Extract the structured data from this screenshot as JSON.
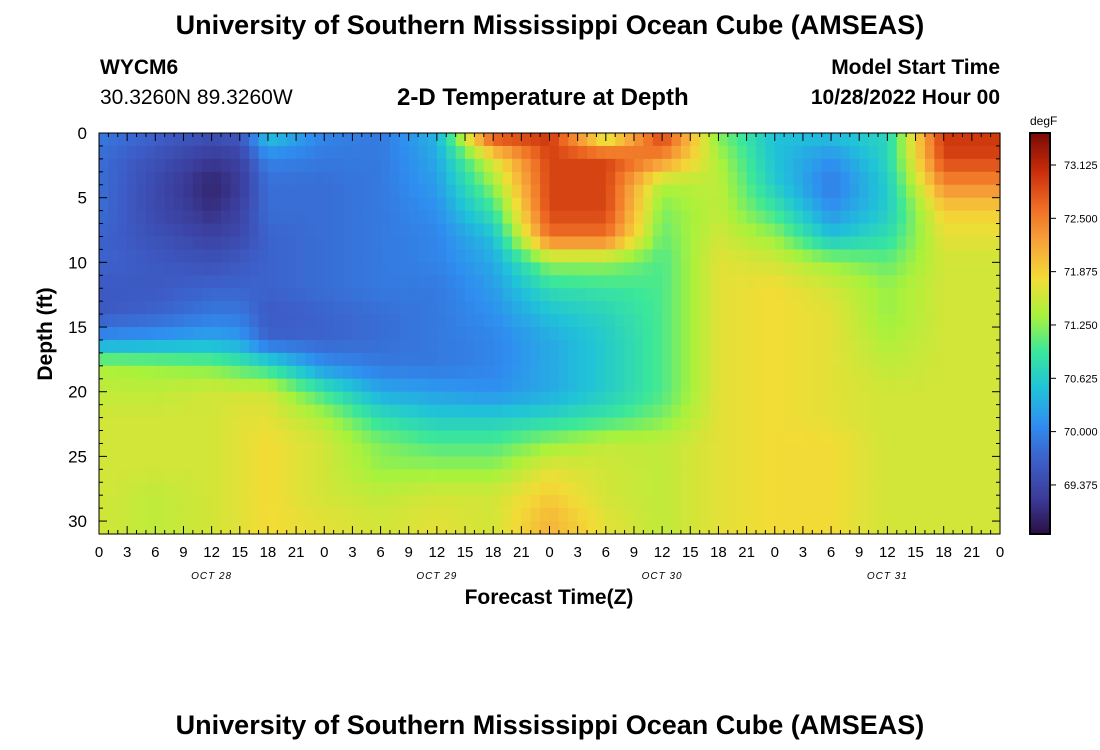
{
  "page": {
    "title": "University of Southern Mississippi Ocean Cube (AMSEAS)",
    "station_id": "WYCM6",
    "station_coords": "30.3260N  89.3260W",
    "chart_title": "2-D Temperature at Depth",
    "model_start_label": "Model Start Time",
    "model_start_value": "10/28/2022 Hour 00",
    "footer_title": "University of Southern Mississippi Ocean Cube (AMSEAS)"
  },
  "chart_data": {
    "type": "heatmap",
    "title": "2-D Temperature at Depth",
    "xlabel": "Forecast Time(Z)",
    "ylabel": "Depth (ft)",
    "x_unit": "hours from model start",
    "x_range": [
      0,
      96
    ],
    "x_tick_labels": [
      "0",
      "3",
      "6",
      "9",
      "12",
      "15",
      "18",
      "21",
      "0",
      "3",
      "6",
      "9",
      "12",
      "15",
      "18",
      "21",
      "0",
      "3",
      "6",
      "9",
      "12",
      "15",
      "18",
      "21",
      "0",
      "3",
      "6",
      "9",
      "12",
      "15",
      "18",
      "21",
      "0"
    ],
    "day_labels": [
      "OCT 28",
      "OCT 29",
      "OCT 30",
      "OCT 31"
    ],
    "y_range": [
      0,
      31
    ],
    "y_inverted": true,
    "y_ticks": [
      0,
      5,
      10,
      15,
      20,
      25,
      30
    ],
    "colorbar": {
      "unit": "degF",
      "range": [
        68.8,
        73.5
      ],
      "ticks": [
        "73.125",
        "72.500",
        "71.875",
        "71.250",
        "70.625",
        "70.000",
        "69.375"
      ],
      "colors": [
        "#2a0f45",
        "#3b3c9a",
        "#3d5ec8",
        "#2f8ef0",
        "#20c3d8",
        "#3be79a",
        "#a8f23c",
        "#f2dc36",
        "#f7a43a",
        "#ee6a23",
        "#c62a08",
        "#7a0b04"
      ]
    },
    "depths": [
      0,
      2,
      4,
      6,
      8,
      10,
      12,
      14,
      16,
      18,
      20,
      22,
      24,
      26,
      28,
      30,
      31
    ],
    "times": [
      0,
      6,
      12,
      15,
      18,
      24,
      30,
      36,
      42,
      48,
      54,
      60,
      66,
      72,
      78,
      84,
      90,
      96
    ],
    "temperatures": [
      [
        69.9,
        69.7,
        69.5,
        69.6,
        70.6,
        70.0,
        69.9,
        70.4,
        73.0,
        73.0,
        71.3,
        73.0,
        71.2,
        70.5,
        70.5,
        70.7,
        73.0,
        73.0
      ],
      [
        69.8,
        69.5,
        69.2,
        69.3,
        70.0,
        69.9,
        69.9,
        70.3,
        71.7,
        72.9,
        72.9,
        72.4,
        71.4,
        70.5,
        70.1,
        70.7,
        72.9,
        72.9
      ],
      [
        69.8,
        69.4,
        69.0,
        69.2,
        69.8,
        69.8,
        69.9,
        70.2,
        71.3,
        72.9,
        72.9,
        71.4,
        71.5,
        70.6,
        69.9,
        70.6,
        72.4,
        72.4
      ],
      [
        69.8,
        69.4,
        69.1,
        69.3,
        69.8,
        69.8,
        69.9,
        70.1,
        70.9,
        72.9,
        72.9,
        71.2,
        71.5,
        70.9,
        70.1,
        70.6,
        71.9,
        71.9
      ],
      [
        69.7,
        69.5,
        69.3,
        69.4,
        69.7,
        69.8,
        69.9,
        70.0,
        70.5,
        72.6,
        72.6,
        71.1,
        71.6,
        71.3,
        70.5,
        70.8,
        71.7,
        71.7
      ],
      [
        69.7,
        69.6,
        69.5,
        69.6,
        69.7,
        69.8,
        69.9,
        70.0,
        70.3,
        71.3,
        71.3,
        71.0,
        71.7,
        71.6,
        71.3,
        71.1,
        71.6,
        71.6
      ],
      [
        69.6,
        69.6,
        69.7,
        69.7,
        69.7,
        69.8,
        69.9,
        69.9,
        70.2,
        70.8,
        70.9,
        71.0,
        71.7,
        71.8,
        71.6,
        71.3,
        71.6,
        71.6
      ],
      [
        69.6,
        69.7,
        69.9,
        69.9,
        69.6,
        69.7,
        69.8,
        69.9,
        70.1,
        70.5,
        70.7,
        71.0,
        71.7,
        71.8,
        71.7,
        71.3,
        71.6,
        71.6
      ],
      [
        70.1,
        70.2,
        70.3,
        70.2,
        69.7,
        69.7,
        69.8,
        69.9,
        70.0,
        70.3,
        70.6,
        71.0,
        71.7,
        71.8,
        71.7,
        71.4,
        71.6,
        71.6
      ],
      [
        71.4,
        71.3,
        71.2,
        71.0,
        70.8,
        70.1,
        69.9,
        69.9,
        70.0,
        70.3,
        70.6,
        71.0,
        71.7,
        71.8,
        71.7,
        71.5,
        71.6,
        71.6
      ],
      [
        71.5,
        71.5,
        71.6,
        71.6,
        71.6,
        70.9,
        70.3,
        70.2,
        70.1,
        70.3,
        70.6,
        71.0,
        71.7,
        71.8,
        71.7,
        71.6,
        71.6,
        71.6
      ],
      [
        71.6,
        71.6,
        71.6,
        71.7,
        71.7,
        71.4,
        70.8,
        70.6,
        70.6,
        70.7,
        70.9,
        71.2,
        71.7,
        71.8,
        71.7,
        71.6,
        71.6,
        71.6
      ],
      [
        71.6,
        71.6,
        71.6,
        71.7,
        71.8,
        71.6,
        71.2,
        71.0,
        71.0,
        71.3,
        71.5,
        71.5,
        71.7,
        71.8,
        71.8,
        71.6,
        71.6,
        71.6
      ],
      [
        71.6,
        71.6,
        71.6,
        71.7,
        71.8,
        71.6,
        71.3,
        71.3,
        71.3,
        71.7,
        71.6,
        71.5,
        71.7,
        71.8,
        71.8,
        71.6,
        71.6,
        71.6
      ],
      [
        71.6,
        71.5,
        71.6,
        71.7,
        71.8,
        71.6,
        71.5,
        71.6,
        71.6,
        71.9,
        71.6,
        71.5,
        71.7,
        71.8,
        71.8,
        71.6,
        71.6,
        71.6
      ],
      [
        71.6,
        71.5,
        71.6,
        71.7,
        71.8,
        71.7,
        71.6,
        71.7,
        71.6,
        72.1,
        71.7,
        71.5,
        71.7,
        71.8,
        71.8,
        71.6,
        71.6,
        71.6
      ],
      [
        71.6,
        71.5,
        71.6,
        71.7,
        71.8,
        71.7,
        71.6,
        71.7,
        71.6,
        72.1,
        71.7,
        71.5,
        71.7,
        71.8,
        71.8,
        71.6,
        71.6,
        71.6
      ]
    ]
  }
}
